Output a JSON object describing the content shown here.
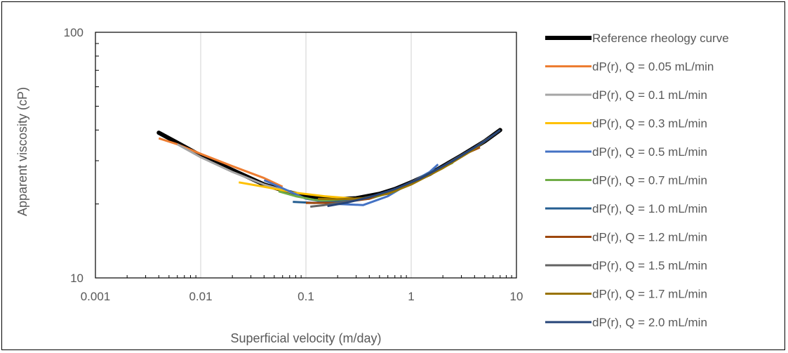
{
  "chart_data": {
    "type": "line",
    "title": "",
    "xlabel": "Superficial velocity (m/day)",
    "ylabel": "Apparent viscosity (cP)",
    "x_scale": "log",
    "y_scale": "log",
    "xlim": [
      0.001,
      10
    ],
    "ylim": [
      10,
      100
    ],
    "x_ticks": [
      0.001,
      0.01,
      0.1,
      1,
      10
    ],
    "x_tick_labels": [
      "0.001",
      "0.01",
      "0.1",
      "1",
      "10"
    ],
    "y_ticks": [
      10,
      100
    ],
    "y_tick_labels": [
      "10",
      "100"
    ],
    "grid": "vertical major",
    "legend_position": "right",
    "series": [
      {
        "name": "Reference rheology curve",
        "color": "#000000",
        "x": [
          0.004,
          0.006,
          0.01,
          0.02,
          0.04,
          0.07,
          0.1,
          0.15,
          0.2,
          0.3,
          0.5,
          0.7,
          1,
          1.5,
          2,
          3,
          5,
          7
        ],
        "y": [
          39,
          35.5,
          31.5,
          27.5,
          24,
          22.3,
          21.5,
          21,
          20.9,
          21.1,
          22,
          23,
          24.5,
          26.5,
          28.5,
          31.5,
          36,
          40
        ]
      },
      {
        "name": "dP(r), Q = 0.05 mL/min",
        "color": "#ed7d31",
        "x": [
          0.004,
          0.006,
          0.01,
          0.02,
          0.04,
          0.06
        ],
        "y": [
          37,
          35,
          32,
          28.5,
          25.5,
          23.5
        ]
      },
      {
        "name": "dP(r), Q = 0.1 mL/min",
        "color": "#a5a5a5",
        "x": [
          0.006,
          0.01,
          0.02,
          0.04,
          0.08
        ],
        "y": [
          35,
          31,
          27,
          24,
          22
        ]
      },
      {
        "name": "dP(r), Q = 0.3 mL/min",
        "color": "#ffc000",
        "x": [
          0.023,
          0.04,
          0.08,
          0.15,
          0.3
        ],
        "y": [
          24.5,
          23.5,
          22.2,
          21.5,
          21
        ]
      },
      {
        "name": "dP(r), Q = 0.5 mL/min",
        "color": "#4472c4",
        "x": [
          0.04,
          0.07,
          0.1,
          0.2,
          0.35,
          0.6,
          1,
          1.5,
          1.8
        ],
        "y": [
          25,
          22.5,
          21,
          20,
          19.8,
          21.5,
          24.5,
          27,
          29
        ]
      },
      {
        "name": "dP(r), Q = 0.7 mL/min",
        "color": "#70ad47",
        "x": [
          0.055,
          0.08,
          0.12,
          0.2,
          0.4,
          0.7,
          1,
          1.5,
          2.5
        ],
        "y": [
          22.5,
          21.5,
          20.8,
          20.5,
          21,
          22.5,
          24.5,
          26.5,
          29.5
        ]
      },
      {
        "name": "dP(r), Q = 1.0 mL/min",
        "color": "#255e91",
        "x": [
          0.075,
          0.12,
          0.2,
          0.3,
          0.5,
          0.8,
          1.2,
          2
        ],
        "y": [
          20.4,
          20.2,
          20.4,
          20.7,
          21.8,
          23.5,
          25.5,
          28.5
        ]
      },
      {
        "name": "dP(r), Q = 1.2 mL/min",
        "color": "#9e480e",
        "x": [
          0.1,
          0.2,
          0.4,
          0.8,
          1.5,
          3,
          4.5
        ],
        "y": [
          20.2,
          20.2,
          21,
          23.5,
          26.5,
          31.5,
          34
        ]
      },
      {
        "name": "dP(r), Q = 1.5 mL/min",
        "color": "#636363",
        "x": [
          0.11,
          0.15,
          0.25,
          0.5,
          1,
          2,
          4,
          6.5
        ],
        "y": [
          19.5,
          19.8,
          20.5,
          21.8,
          24.3,
          28.5,
          34,
          39
        ]
      },
      {
        "name": "dP(r), Q = 1.7 mL/min",
        "color": "#997300",
        "x": [
          0.13,
          0.2,
          0.35,
          0.6,
          1,
          2,
          4,
          7
        ],
        "y": [
          21,
          20.9,
          21.1,
          22,
          24,
          28,
          33.5,
          40
        ]
      },
      {
        "name": "dP(r), Q = 2.0 mL/min",
        "color": "#264478",
        "x": [
          0.16,
          0.25,
          0.4,
          0.7,
          1.2,
          2.5,
          5,
          7
        ],
        "y": [
          19.6,
          20.3,
          21.3,
          23,
          25.3,
          30,
          36,
          40
        ]
      }
    ]
  }
}
